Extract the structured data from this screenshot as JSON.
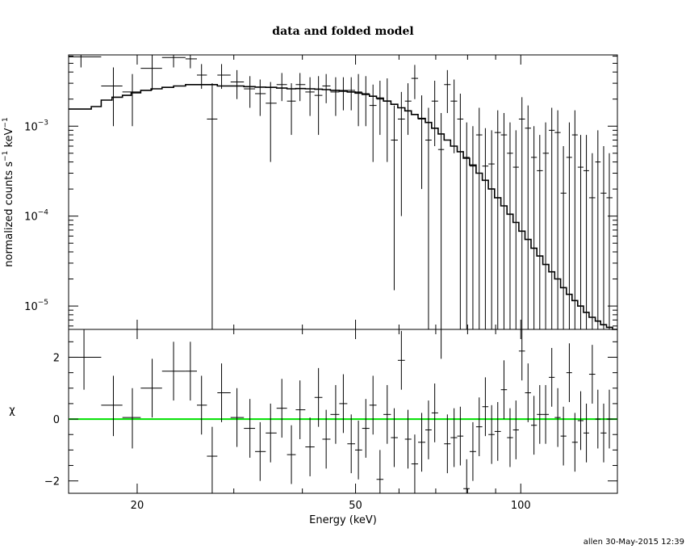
{
  "chart_data": [
    {
      "type": "scatter",
      "panel": "top",
      "title": "data and folded model",
      "ylabel_parts": [
        "normalized counts s",
        "−1",
        " keV",
        "−1"
      ],
      "xscale": "log",
      "yscale": "log",
      "xlim": [
        15,
        150
      ],
      "ylim": [
        5.5e-06,
        0.0062
      ],
      "y_ticks": [
        {
          "value": 0.001,
          "base": "10",
          "exp": "−3"
        },
        {
          "value": 0.0001,
          "base": "10",
          "exp": "−4"
        },
        {
          "value": 1e-05,
          "base": "10",
          "exp": "−5"
        }
      ],
      "series": [
        {
          "kind": "data",
          "x": [
            15.8,
            18.1,
            19.6,
            21.3,
            23.3,
            25.0,
            26.2,
            27.4,
            28.5,
            30.4,
            32.1,
            33.5,
            35.0,
            36.7,
            38.2,
            39.6,
            41.3,
            42.8,
            44.2,
            46.0,
            47.5,
            49.1,
            50.6,
            52.2,
            53.8,
            55.4,
            57.1,
            58.8,
            60.6,
            62.3,
            64.1,
            66.0,
            67.9,
            69.7,
            71.6,
            73.5,
            75.6,
            77.6,
            79.7,
            81.8,
            84.0,
            86.2,
            88.5,
            90.8,
            93.2,
            95.6,
            98.0,
            100.5,
            103.1,
            105.7,
            108.3,
            111.0,
            113.9,
            116.8,
            119.6,
            122.6,
            125.5,
            128.6,
            131.7,
            135.0,
            138.2,
            141.6,
            145.0
          ],
          "xlo": [
            15.0,
            17.2,
            18.8,
            20.3,
            22.2,
            24.5,
            25.7,
            26.8,
            28.0,
            29.6,
            31.3,
            32.8,
            34.3,
            35.9,
            37.5,
            38.9,
            40.5,
            42.1,
            43.5,
            45.0,
            46.7,
            48.3,
            49.9,
            51.4,
            53.0,
            54.6,
            56.2,
            58.0,
            59.7,
            61.5,
            63.2,
            65.0,
            67.0,
            68.8,
            70.7,
            72.5,
            74.5,
            76.6,
            78.6,
            80.7,
            82.9,
            85.1,
            87.3,
            89.6,
            92.0,
            94.4,
            96.8,
            99.2,
            101.8,
            104.4,
            107.0,
            109.7,
            112.5,
            115.3,
            118.2,
            121.1,
            124.0,
            127.0,
            130.1,
            133.2,
            136.7,
            139.8,
            143.3
          ],
          "xhi": [
            17.2,
            18.8,
            20.3,
            22.2,
            24.5,
            25.7,
            26.8,
            28.0,
            29.6,
            31.3,
            32.8,
            34.3,
            35.9,
            37.5,
            38.9,
            40.5,
            42.1,
            43.5,
            45.0,
            46.7,
            48.3,
            49.9,
            51.4,
            53.0,
            54.6,
            56.2,
            58.0,
            59.7,
            61.5,
            63.2,
            65.0,
            67.0,
            68.8,
            70.7,
            72.5,
            74.5,
            76.6,
            78.6,
            80.7,
            82.9,
            85.1,
            87.3,
            89.6,
            92.0,
            94.4,
            96.8,
            99.2,
            101.8,
            104.4,
            107.0,
            109.7,
            112.5,
            115.3,
            118.2,
            121.1,
            124.0,
            127.0,
            130.1,
            133.2,
            136.7,
            139.8,
            143.3,
            147.0
          ],
          "y": [
            0.0059,
            0.0028,
            0.0024,
            0.0044,
            0.0058,
            0.0056,
            0.0037,
            0.0012,
            0.0037,
            0.0031,
            0.0026,
            0.0023,
            0.0018,
            0.0029,
            0.0019,
            0.0029,
            0.0024,
            0.0022,
            0.0028,
            0.0024,
            0.0025,
            0.0025,
            0.0024,
            0.0023,
            0.0017,
            0.002,
            0.0019,
            0.0007,
            0.0012,
            0.0019,
            0.0034,
            0.0012,
            0.0007,
            0.0019,
            0.00055,
            0.0029,
            0.0019,
            0.0012,
            0.00045,
            0.00036,
            0.0008,
            0.00036,
            0.00038,
            0.00085,
            0.0008,
            0.0005,
            0.00035,
            0.0012,
            0.00095,
            0.00045,
            0.00032,
            0.0005,
            0.0009,
            0.00085,
            0.00018,
            0.00045,
            0.0008,
            0.00035,
            0.00032,
            0.00016,
            0.0004,
            0.00018,
            0.00016
          ],
          "ylo": [
            0.0045,
            0.001,
            0.001,
            0.0025,
            0.0045,
            0.0044,
            0.0026,
            5.5e-06,
            0.0026,
            0.002,
            0.0016,
            0.0013,
            0.0004,
            0.0019,
            0.0008,
            0.0019,
            0.0013,
            0.0008,
            0.0018,
            0.0013,
            0.0015,
            0.0015,
            0.001,
            0.001,
            0.0004,
            0.0008,
            0.0004,
            1.5e-05,
            0.0001,
            0.0008,
            0.002,
            0.0002,
            5.5e-06,
            0.0006,
            5.5e-06,
            0.0014,
            0.0005,
            5.5e-06,
            5.5e-06,
            5.5e-06,
            5.5e-06,
            5.5e-06,
            5.5e-06,
            5.5e-06,
            5.5e-06,
            5.5e-06,
            5.5e-06,
            5.5e-06,
            5.5e-06,
            5.5e-06,
            5.5e-06,
            5.5e-06,
            5.5e-06,
            5.5e-06,
            5.5e-06,
            5.5e-06,
            5.5e-06,
            5.5e-06,
            5.5e-06,
            5.5e-06,
            5.5e-06,
            5.5e-06,
            5.5e-06
          ],
          "yhi": [
            0.0062,
            0.0045,
            0.0038,
            0.0062,
            0.0062,
            0.0062,
            0.0049,
            0.003,
            0.0049,
            0.0042,
            0.0036,
            0.0033,
            0.0031,
            0.0039,
            0.003,
            0.0039,
            0.0035,
            0.0036,
            0.0038,
            0.0035,
            0.0035,
            0.0035,
            0.0038,
            0.0036,
            0.0029,
            0.0032,
            0.0034,
            0.0017,
            0.0024,
            0.003,
            0.0048,
            0.0022,
            0.0016,
            0.0032,
            0.0014,
            0.0042,
            0.0033,
            0.0023,
            0.0011,
            0.001,
            0.0016,
            0.00095,
            0.0009,
            0.0015,
            0.0014,
            0.0011,
            0.0009,
            0.0021,
            0.0017,
            0.001,
            0.0008,
            0.0011,
            0.0016,
            0.0015,
            0.0006,
            0.0011,
            0.0015,
            0.0008,
            0.0008,
            0.0005,
            0.0009,
            0.0006,
            0.0005
          ]
        },
        {
          "kind": "model-step",
          "edges": [
            15.0,
            16.5,
            17.2,
            18.0,
            18.8,
            19.5,
            20.3,
            21.2,
            22.2,
            23.3,
            24.5,
            25.7,
            26.8,
            28.0,
            29.6,
            31.3,
            32.8,
            34.3,
            35.9,
            37.5,
            38.9,
            40.5,
            42.1,
            43.5,
            45.0,
            46.7,
            48.3,
            49.9,
            51.4,
            53.0,
            54.6,
            56.2,
            58.0,
            59.7,
            61.5,
            63.2,
            65.0,
            67.0,
            68.8,
            70.7,
            72.5,
            74.5,
            76.6,
            78.6,
            80.7,
            82.9,
            85.1,
            87.3,
            89.6,
            92.0,
            94.4,
            96.8,
            99.2,
            101.8,
            104.4,
            107.0,
            109.7,
            112.5,
            115.3,
            118.2,
            121.1,
            124.0,
            127.0,
            130.1,
            133.2,
            136.7,
            139.8,
            143.3,
            147.0,
            150.0
          ],
          "values": [
            0.00155,
            0.00165,
            0.00195,
            0.0021,
            0.0022,
            0.00235,
            0.0025,
            0.0026,
            0.0027,
            0.0028,
            0.0029,
            0.0029,
            0.0029,
            0.0028,
            0.0028,
            0.00275,
            0.00272,
            0.0027,
            0.00265,
            0.0026,
            0.00262,
            0.0026,
            0.00258,
            0.00255,
            0.0025,
            0.00245,
            0.0024,
            0.00233,
            0.00225,
            0.00215,
            0.00205,
            0.0019,
            0.00175,
            0.0016,
            0.00148,
            0.00135,
            0.00122,
            0.0011,
            0.00095,
            0.00082,
            0.0007,
            0.0006,
            0.00052,
            0.00044,
            0.00037,
            0.0003,
            0.00025,
            0.0002,
            0.00016,
            0.00013,
            0.000105,
            8.5e-05,
            6.8e-05,
            5.5e-05,
            4.4e-05,
            3.6e-05,
            2.9e-05,
            2.4e-05,
            2e-05,
            1.6e-05,
            1.35e-05,
            1.15e-05,
            1e-05,
            8.5e-06,
            7.5e-06,
            6.8e-06,
            6.2e-06,
            5.8e-06,
            5.5e-06
          ]
        }
      ]
    },
    {
      "type": "scatter",
      "panel": "bottom",
      "xlabel": "Energy (keV)",
      "ylabel": "χ",
      "xscale": "log",
      "xlim": [
        15,
        150
      ],
      "ylim": [
        -2.4,
        2.9
      ],
      "x_ticks": [
        20,
        50,
        100
      ],
      "y_ticks": [
        {
          "value": 2,
          "label": "2"
        },
        {
          "value": 0,
          "label": "0"
        },
        {
          "value": -2,
          "label": "−2"
        }
      ],
      "zero_line_color": "#00e000",
      "series": [
        {
          "kind": "residuals",
          "x": [
            16.0,
            18.1,
            19.6,
            21.3,
            23.3,
            25.0,
            26.2,
            27.4,
            28.5,
            30.4,
            32.1,
            33.5,
            35.0,
            36.7,
            38.2,
            39.6,
            41.3,
            42.8,
            44.2,
            46.0,
            47.5,
            49.1,
            50.6,
            52.2,
            53.8,
            55.4,
            57.1,
            58.8,
            60.6,
            62.3,
            64.1,
            66.0,
            67.9,
            69.7,
            71.6,
            73.5,
            75.6,
            77.6,
            79.7,
            81.8,
            84.0,
            86.2,
            88.5,
            90.8,
            93.2,
            95.6,
            98.0,
            100.5,
            103.1,
            105.7,
            108.3,
            111.0,
            113.9,
            116.8,
            119.6,
            122.6,
            125.5,
            128.6,
            131.7,
            135.0,
            138.2,
            141.6,
            145.0
          ],
          "xlo": [
            15.0,
            17.2,
            18.8,
            20.3,
            22.2,
            24.5,
            25.7,
            26.8,
            28.0,
            29.6,
            31.3,
            32.8,
            34.3,
            35.9,
            37.5,
            38.9,
            40.5,
            42.1,
            43.5,
            45.0,
            46.7,
            48.3,
            49.9,
            51.4,
            53.0,
            54.6,
            56.2,
            58.0,
            59.7,
            61.5,
            63.2,
            65.0,
            67.0,
            68.8,
            70.7,
            72.5,
            74.5,
            76.6,
            78.6,
            80.7,
            82.9,
            85.1,
            87.3,
            89.6,
            92.0,
            94.4,
            96.8,
            99.2,
            101.8,
            104.4,
            107.0,
            109.7,
            112.5,
            115.3,
            118.2,
            121.1,
            124.0,
            127.0,
            130.1,
            133.2,
            136.7,
            139.8,
            143.3
          ],
          "xhi": [
            17.2,
            18.8,
            20.3,
            22.2,
            24.5,
            25.7,
            26.8,
            28.0,
            29.6,
            31.3,
            32.8,
            34.3,
            35.9,
            37.5,
            38.9,
            40.5,
            42.1,
            43.5,
            45.0,
            46.7,
            48.3,
            49.9,
            51.4,
            53.0,
            54.6,
            56.2,
            58.0,
            59.7,
            61.5,
            63.2,
            65.0,
            67.0,
            68.8,
            70.7,
            72.5,
            74.5,
            76.6,
            78.6,
            80.7,
            82.9,
            85.1,
            87.3,
            89.6,
            92.0,
            94.4,
            96.8,
            99.2,
            101.8,
            104.4,
            107.0,
            109.7,
            112.5,
            115.3,
            118.2,
            121.1,
            124.0,
            127.0,
            130.1,
            133.2,
            136.7,
            139.8,
            143.3,
            147.0
          ],
          "y": [
            2.0,
            0.45,
            0.05,
            1.0,
            1.55,
            1.55,
            0.45,
            -1.2,
            0.85,
            0.05,
            -0.3,
            -1.05,
            -0.45,
            0.35,
            -1.15,
            0.3,
            -0.9,
            0.7,
            -0.65,
            0.15,
            0.5,
            -0.8,
            -1.0,
            -0.3,
            0.45,
            -1.95,
            0.15,
            -0.6,
            1.9,
            -0.65,
            -1.45,
            -0.75,
            -0.35,
            0.2,
            2.9,
            -0.8,
            -0.6,
            -0.55,
            -2.25,
            -1.05,
            -0.25,
            0.4,
            -0.5,
            -0.4,
            0.95,
            -0.6,
            -0.35,
            2.2,
            0.85,
            -0.2,
            0.15,
            0.15,
            1.35,
            0.05,
            -0.55,
            1.5,
            -0.75,
            -0.05,
            -0.45,
            1.45,
            0.0,
            -0.45,
            0.0
          ],
          "ylo": [
            0.95,
            -0.55,
            -0.95,
            0.05,
            0.6,
            0.6,
            -0.5,
            -2.4,
            -0.1,
            -0.9,
            -1.25,
            -2.0,
            -1.4,
            -0.6,
            -2.1,
            -0.65,
            -1.85,
            -0.25,
            -1.6,
            -0.8,
            -0.45,
            -1.75,
            -1.95,
            -1.25,
            -0.5,
            -2.4,
            -0.8,
            -1.55,
            0.95,
            -1.6,
            -2.4,
            -1.7,
            -1.3,
            -0.75,
            1.95,
            -1.75,
            -1.55,
            -1.5,
            -2.4,
            -2.0,
            -1.2,
            -0.55,
            -1.45,
            -1.35,
            0.0,
            -1.55,
            -1.3,
            1.25,
            -0.1,
            -1.15,
            -0.8,
            -0.8,
            0.4,
            -0.9,
            -1.5,
            0.55,
            -1.7,
            -1.0,
            -1.4,
            0.5,
            -0.95,
            -1.4,
            -0.95
          ],
          "yhi": [
            2.9,
            1.4,
            1.0,
            1.95,
            2.5,
            2.5,
            1.4,
            -0.25,
            1.8,
            1.0,
            0.65,
            -0.1,
            0.5,
            1.3,
            -0.2,
            1.25,
            0.05,
            1.65,
            0.3,
            1.1,
            1.45,
            0.15,
            -0.05,
            0.65,
            1.4,
            -1.0,
            1.1,
            0.35,
            2.85,
            0.3,
            -0.5,
            0.2,
            0.6,
            1.15,
            2.9,
            0.15,
            0.35,
            0.4,
            -1.3,
            -0.1,
            0.7,
            1.35,
            0.45,
            0.55,
            1.9,
            0.35,
            0.6,
            2.9,
            1.8,
            0.75,
            1.1,
            1.1,
            2.3,
            1.0,
            0.4,
            2.45,
            0.2,
            0.9,
            0.5,
            2.4,
            0.95,
            0.5,
            0.95
          ]
        }
      ]
    }
  ],
  "footer": {
    "stamp": "allen 30-May-2015 12:39"
  }
}
